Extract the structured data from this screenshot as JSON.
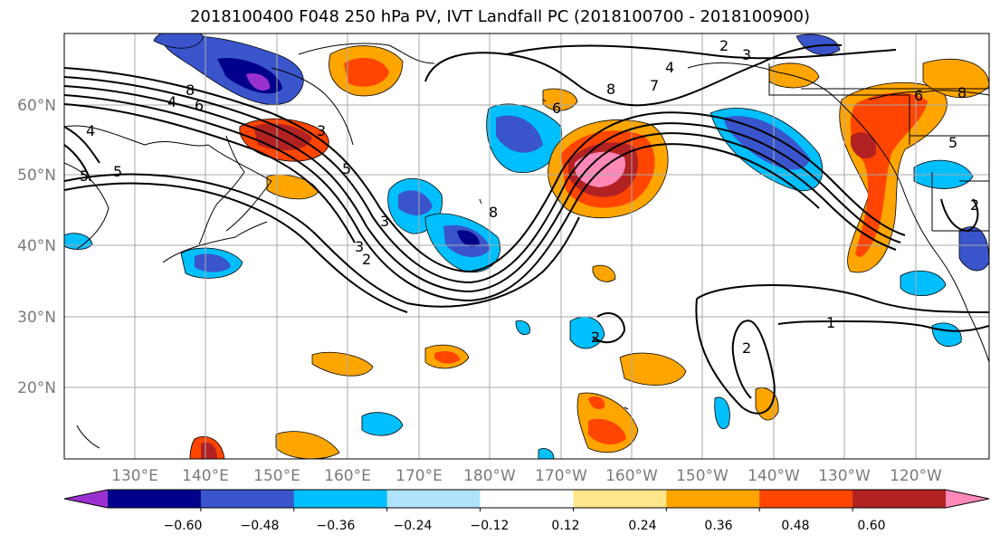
{
  "title": "2018100400 F048 250 hPa PV, IVT Landfall PC (2018100700 - 2018100900)",
  "map": {
    "lon_labels": [
      "130°E",
      "140°E",
      "150°E",
      "160°E",
      "170°E",
      "180°W",
      "170°W",
      "160°W",
      "150°W",
      "140°W",
      "130°W",
      "120°W"
    ],
    "lat_labels": [
      "60°N",
      "50°N",
      "40°N",
      "30°N",
      "20°N"
    ],
    "contour_labels": [
      "2",
      "3",
      "4",
      "5",
      "6",
      "7",
      "8",
      "8",
      "5",
      "4",
      "3",
      "2",
      "8",
      "6",
      "8",
      "5",
      "1",
      "2",
      "2",
      "3",
      "4",
      "5",
      "6",
      "2",
      "3"
    ]
  },
  "colorbar": {
    "tick_labels": [
      "−0.60",
      "−0.48",
      "−0.36",
      "−0.24",
      "−0.12",
      "0.12",
      "0.24",
      "0.36",
      "0.48",
      "0.60"
    ],
    "colors": [
      "#9b30d0",
      "#00008b",
      "#3a55cc",
      "#00bfff",
      "#b0e4fd",
      "#ffffff",
      "#ffe68a",
      "#ffa500",
      "#ff4500",
      "#b22222",
      "#ff88b8"
    ]
  },
  "chart_data": {
    "type": "heatmap",
    "title": "2018100400 F048 250 hPa PV, IVT Landfall PC (2018100700 - 2018100900)",
    "fill_variable_levels": [
      -0.6,
      -0.48,
      -0.36,
      -0.24,
      -0.12,
      0.12,
      0.24,
      0.36,
      0.48,
      0.6
    ],
    "contour_levels": [
      1,
      2,
      3,
      4,
      5,
      6,
      7,
      8
    ],
    "lon_range": [
      "122°E",
      "112°W"
    ],
    "lat_range": [
      "10°N",
      "70°N"
    ],
    "grid": true,
    "colorbar": "bottom, horizontal, extended both ends"
  }
}
